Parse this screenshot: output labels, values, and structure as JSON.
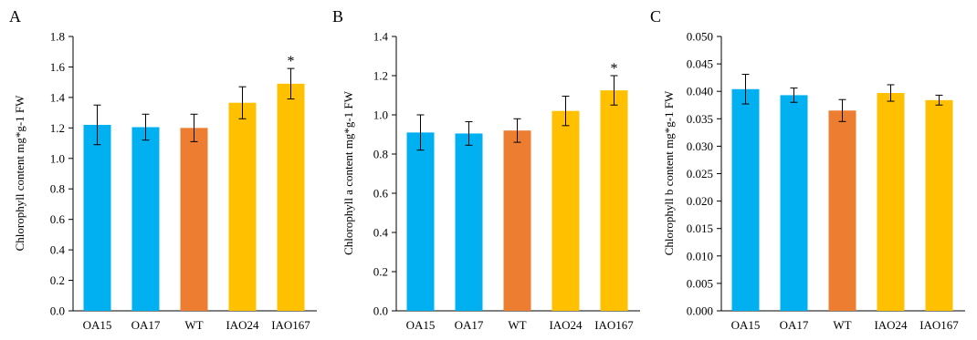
{
  "chart_data": [
    {
      "panel": "A",
      "type": "bar",
      "ylabel": "Chlorophyll  content mg*g-1 FW",
      "ylim": [
        0,
        1.8
      ],
      "yticks": [
        "0.0",
        "0.2",
        "0.4",
        "0.6",
        "0.8",
        "1.0",
        "1.2",
        "1.4",
        "1.6",
        "1.8"
      ],
      "categories": [
        "OA15",
        "OA17",
        "WT",
        "IAO24",
        "IAO167"
      ],
      "values": [
        1.22,
        1.205,
        1.2,
        1.365,
        1.49
      ],
      "errors": [
        0.13,
        0.085,
        0.09,
        0.105,
        0.1
      ],
      "colors": [
        "#00B0F0",
        "#00B0F0",
        "#ED7D31",
        "#FFC000",
        "#FFC000"
      ],
      "annotations": [
        "",
        "",
        "",
        "",
        "*"
      ]
    },
    {
      "panel": "B",
      "type": "bar",
      "ylabel": "Chlorophyll a content mg*g-1 FW",
      "ylim": [
        0,
        1.4
      ],
      "yticks": [
        "0.0",
        "0.2",
        "0.4",
        "0.6",
        "0.8",
        "1.0",
        "1.2",
        "1.4"
      ],
      "categories": [
        "OA15",
        "OA17",
        "WT",
        "IAO24",
        "IAO167"
      ],
      "values": [
        0.91,
        0.905,
        0.92,
        1.02,
        1.125
      ],
      "errors": [
        0.09,
        0.06,
        0.06,
        0.075,
        0.075
      ],
      "colors": [
        "#00B0F0",
        "#00B0F0",
        "#ED7D31",
        "#FFC000",
        "#FFC000"
      ],
      "annotations": [
        "",
        "",
        "",
        "",
        "*"
      ]
    },
    {
      "panel": "C",
      "type": "bar",
      "ylabel": "Chlorophyll b content mg*g-1 FW",
      "ylim": [
        0,
        0.05
      ],
      "yticks": [
        "0.000",
        "0.005",
        "0.010",
        "0.015",
        "0.020",
        "0.025",
        "0.030",
        "0.035",
        "0.040",
        "0.045",
        "0.050"
      ],
      "categories": [
        "OA15",
        "OA17",
        "WT",
        "IAO24",
        "IAO167"
      ],
      "values": [
        0.0404,
        0.0393,
        0.0365,
        0.0397,
        0.0384
      ],
      "errors": [
        0.0027,
        0.0013,
        0.002,
        0.0015,
        0.0009
      ],
      "colors": [
        "#00B0F0",
        "#00B0F0",
        "#ED7D31",
        "#FFC000",
        "#FFC000"
      ],
      "annotations": [
        "",
        "",
        "",
        "",
        ""
      ]
    }
  ]
}
